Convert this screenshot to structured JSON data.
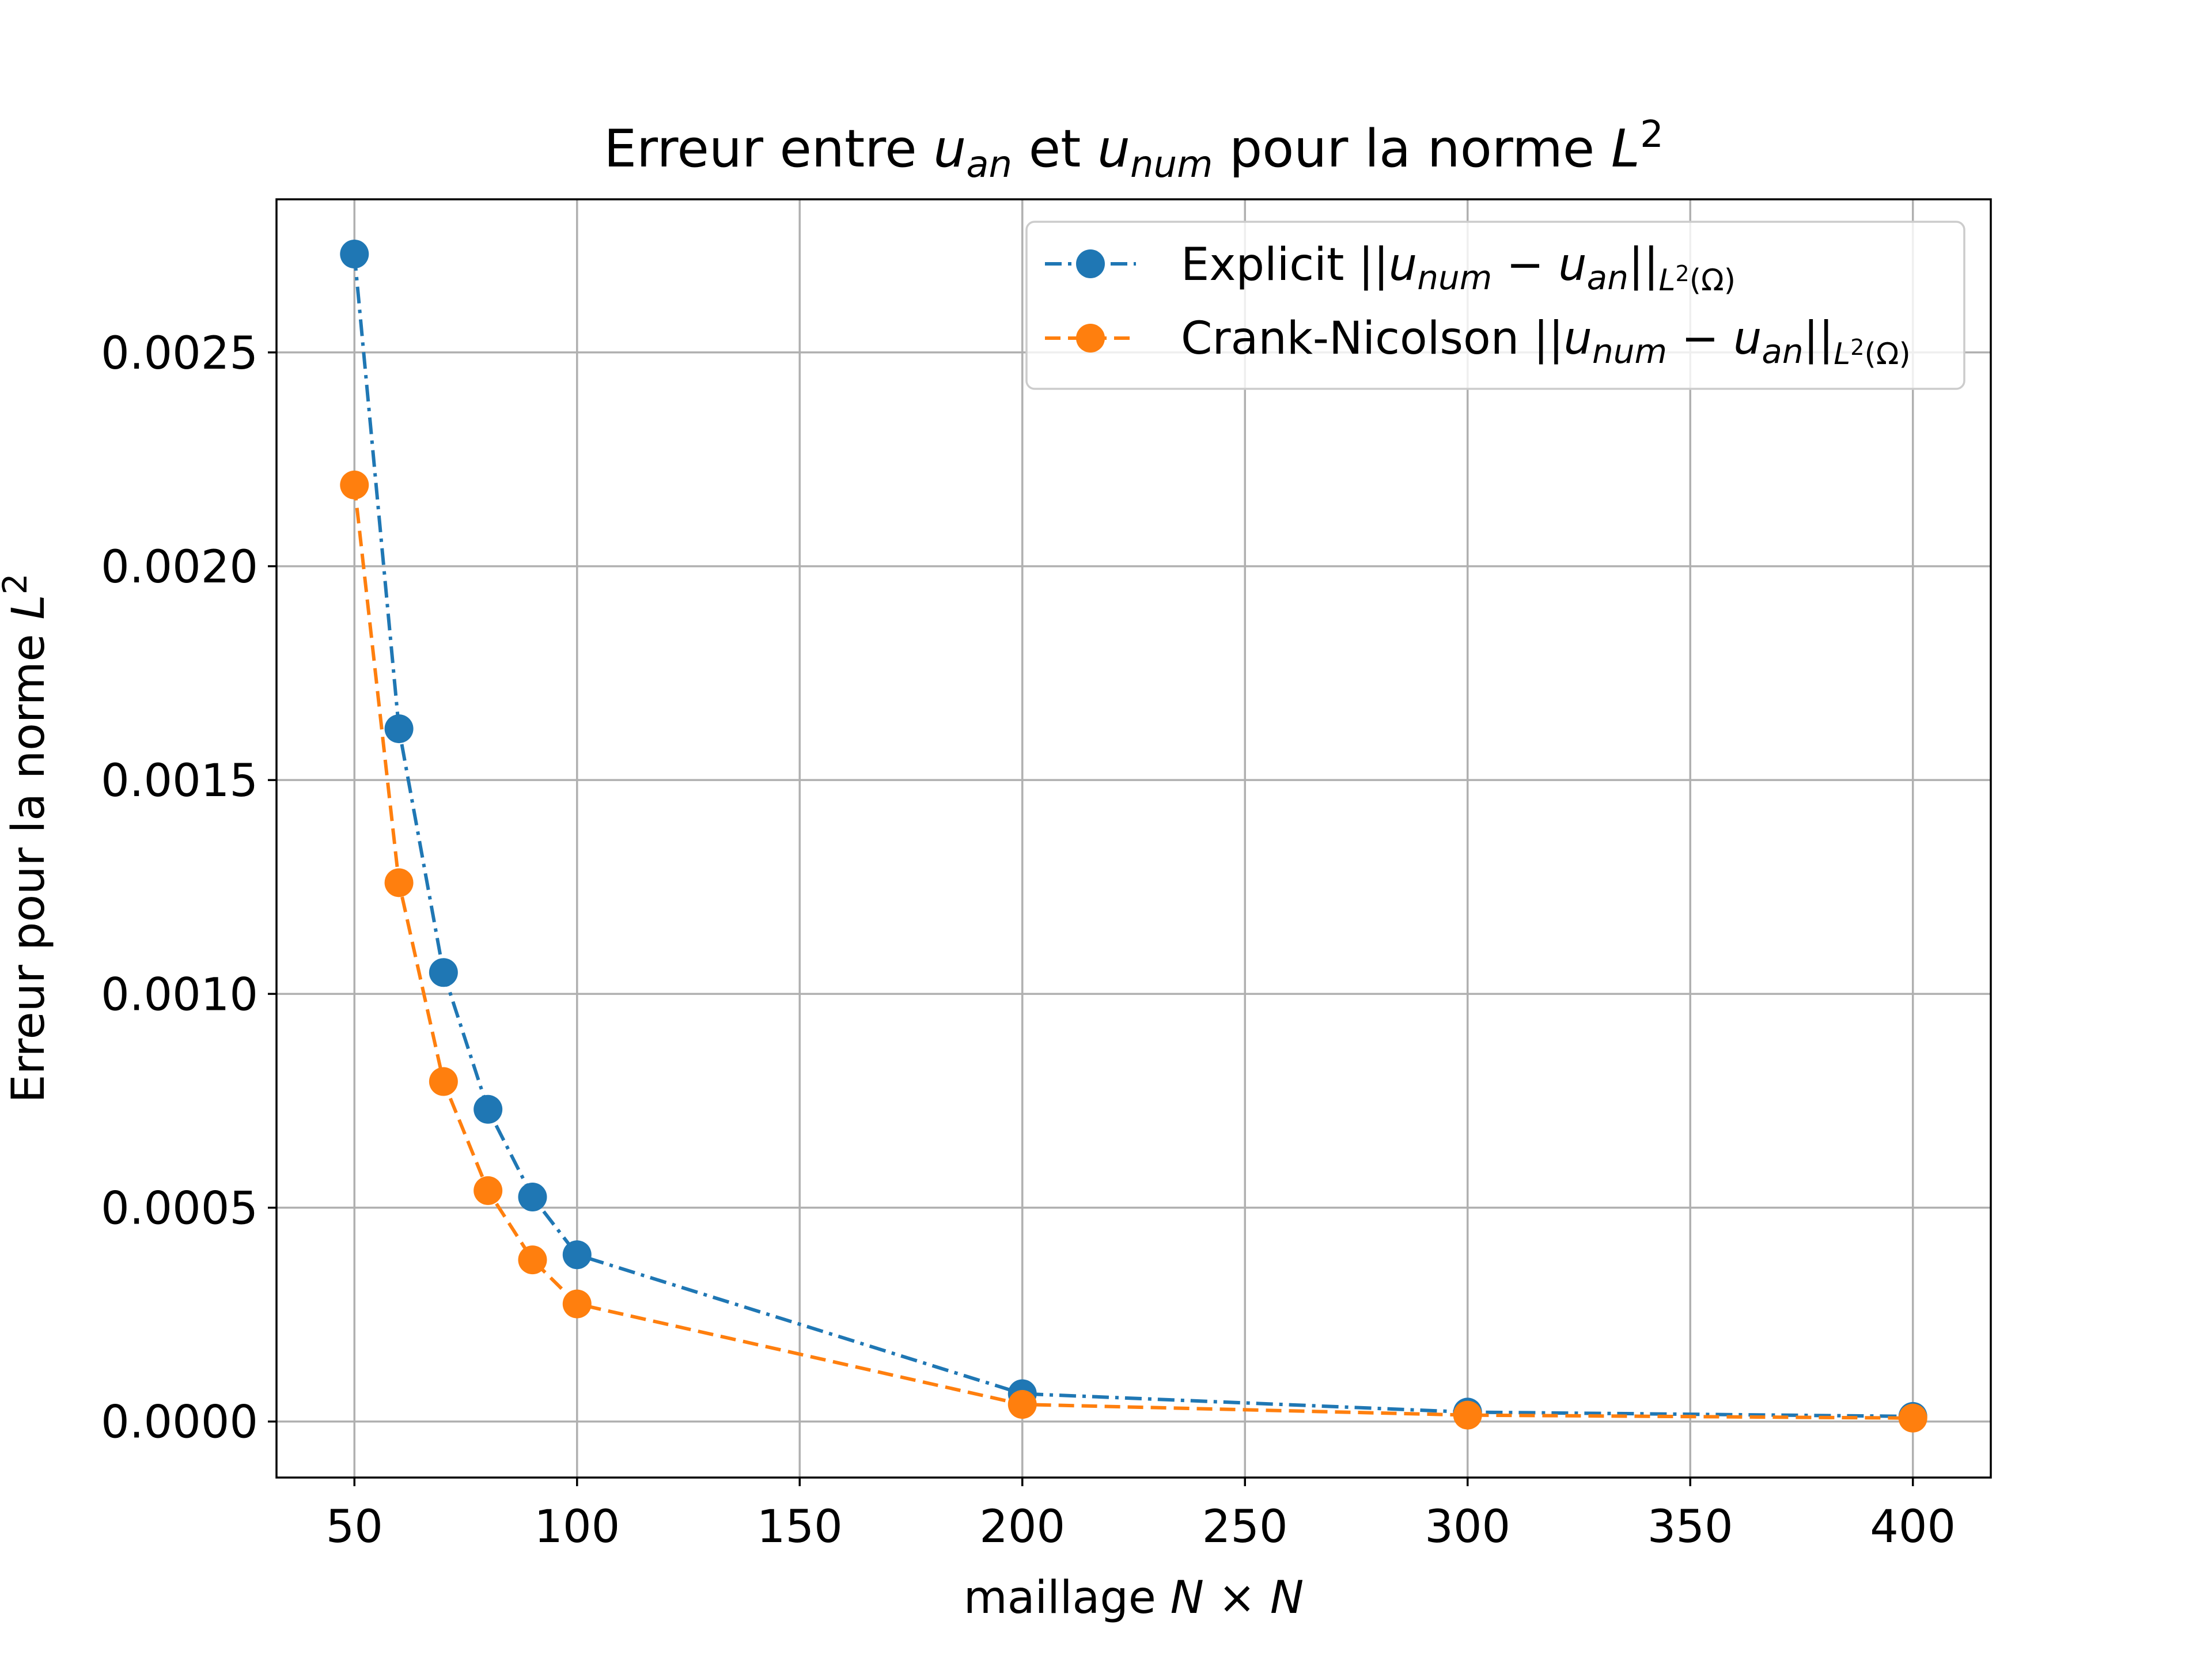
{
  "chart_data": {
    "type": "line",
    "title": {
      "prefix": "Erreur entre ",
      "u1": "u",
      "u1_sub": "an",
      "mid": " et ",
      "u2": "u",
      "u2_sub": "num",
      "suffix": " pour la norme ",
      "norm": "L",
      "norm_sup": "2"
    },
    "xlabel": {
      "text": "maillage ",
      "math": "N × N"
    },
    "ylabel": {
      "text": "Erreur pour la norme ",
      "norm": "L",
      "norm_sup": "2"
    },
    "xlim": [
      32.5,
      417.5
    ],
    "ylim": [
      -0.000131,
      0.002858
    ],
    "xticks": [
      50,
      100,
      150,
      200,
      250,
      300,
      350,
      400
    ],
    "xtick_labels": [
      "50",
      "100",
      "150",
      "200",
      "250",
      "300",
      "350",
      "400"
    ],
    "yticks": [
      0,
      0.0005,
      0.001,
      0.0015,
      0.002,
      0.0025
    ],
    "ytick_labels": [
      "0.0000",
      "0.0005",
      "0.0010",
      "0.0015",
      "0.0020",
      "0.0025"
    ],
    "grid": true,
    "legend_position": "top-right",
    "x": [
      50,
      60,
      70,
      80,
      90,
      100,
      200,
      300,
      400
    ],
    "series": [
      {
        "name": "Explicit",
        "color": "#1f77b4",
        "linestyle": "dashdot",
        "marker": "circle",
        "values": [
          0.00273,
          0.00162,
          0.00105,
          0.00073,
          0.000525,
          0.00039,
          6.5e-05,
          2.2e-05,
          1.2e-05
        ]
      },
      {
        "name": "Crank-Nicolson",
        "color": "#ff7f0e",
        "linestyle": "dashed",
        "marker": "circle",
        "values": [
          0.00219,
          0.00126,
          0.000795,
          0.00054,
          0.000378,
          0.000275,
          4e-05,
          1.5e-05,
          8e-06
        ]
      }
    ],
    "legend_norm": {
      "open": "||",
      "u1": "u",
      "u1_sub": "num",
      "minus": " − ",
      "u2": "u",
      "u2_sub": "an",
      "close": "||",
      "sub_L": "L",
      "sub_sup": "2",
      "sub_omega": "(Ω)"
    }
  }
}
